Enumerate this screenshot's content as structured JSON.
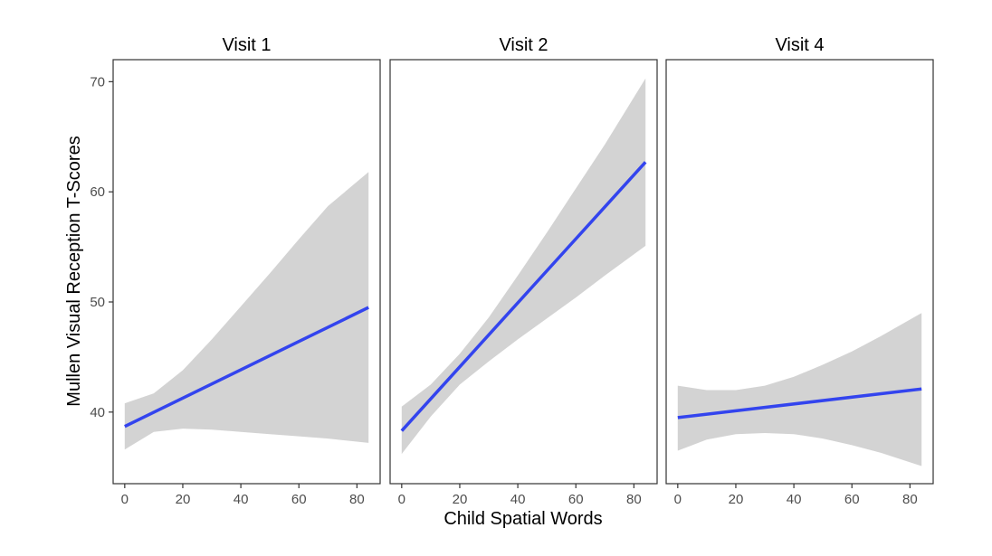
{
  "chart_data": {
    "type": "line",
    "xlabel": "Child Spatial Words",
    "ylabel": "Mullen Visual Reception T-Scores",
    "xlim": [
      -4,
      88
    ],
    "ylim": [
      33.5,
      72
    ],
    "xticks": [
      0,
      20,
      40,
      60,
      80
    ],
    "yticks": [
      40,
      50,
      60,
      70
    ],
    "line_color": "#3344ee",
    "band_color": "#d3d3d3",
    "grid": false,
    "panels": [
      {
        "title": "Visit 1",
        "line": {
          "x": [
            0,
            84
          ],
          "y": [
            38.7,
            49.5
          ]
        },
        "band": {
          "x": [
            0,
            10,
            20,
            30,
            40,
            50,
            60,
            70,
            84
          ],
          "upper": [
            40.8,
            41.7,
            43.8,
            46.6,
            49.6,
            52.6,
            55.7,
            58.7,
            61.8
          ],
          "lower": [
            36.6,
            38.2,
            38.5,
            38.4,
            38.2,
            38.0,
            37.8,
            37.6,
            37.2
          ]
        }
      },
      {
        "title": "Visit 2",
        "line": {
          "x": [
            0,
            84
          ],
          "y": [
            38.3,
            62.7
          ]
        },
        "band": {
          "x": [
            0,
            10,
            20,
            30,
            40,
            50,
            60,
            70,
            84
          ],
          "upper": [
            40.5,
            42.5,
            45.3,
            48.6,
            52.4,
            56.3,
            60.3,
            64.3,
            70.3
          ],
          "lower": [
            36.2,
            39.6,
            42.5,
            44.6,
            46.6,
            48.5,
            50.4,
            52.4,
            55.1
          ]
        }
      },
      {
        "title": "Visit 4",
        "line": {
          "x": [
            0,
            84
          ],
          "y": [
            39.5,
            42.1
          ]
        },
        "band": {
          "x": [
            0,
            10,
            20,
            30,
            40,
            50,
            60,
            70,
            84
          ],
          "upper": [
            42.4,
            42.0,
            42.0,
            42.4,
            43.2,
            44.3,
            45.5,
            46.9,
            49.0
          ],
          "lower": [
            36.5,
            37.5,
            38.0,
            38.1,
            38.0,
            37.6,
            37.0,
            36.3,
            35.1
          ]
        }
      }
    ]
  }
}
